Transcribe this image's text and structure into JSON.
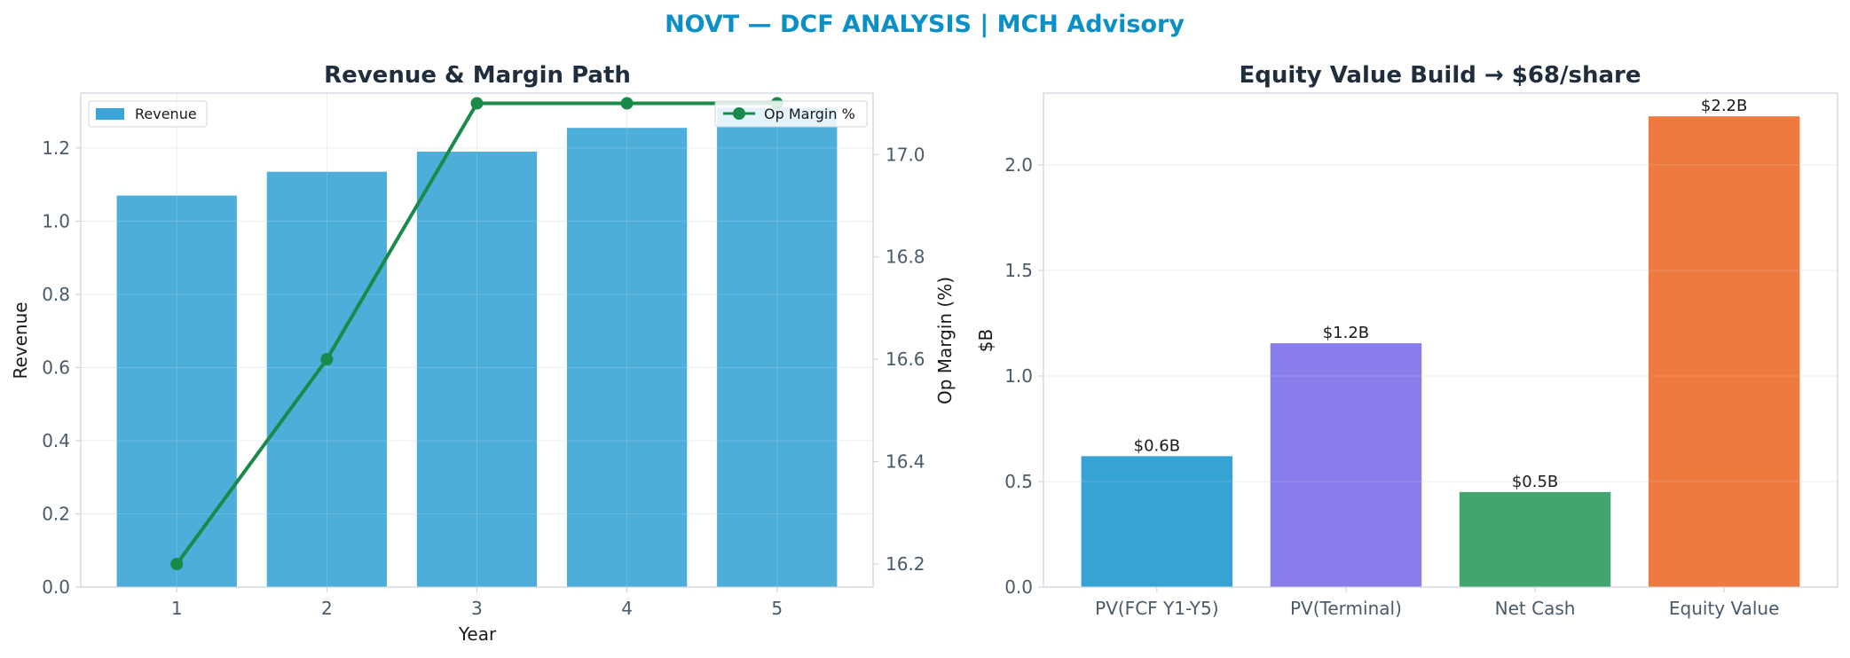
{
  "figure": {
    "title": "NOVT — DCF ANALYSIS | MCH Advisory",
    "title_color": "#0a8fc7"
  },
  "chart_data": [
    {
      "type": "bar",
      "title": "Revenue & Margin Path",
      "xlabel": "Year",
      "ylabel": "Revenue",
      "y2label": "Op Margin (%)",
      "categories": [
        "1",
        "2",
        "3",
        "4",
        "5"
      ],
      "ylim": [
        0,
        1.35
      ],
      "y_ticks": [
        "0.0",
        "0.2",
        "0.4",
        "0.6",
        "0.8",
        "1.0",
        "1.2"
      ],
      "y2lim": [
        16.155,
        17.12
      ],
      "y2_ticks": [
        "16.2",
        "16.4",
        "16.6",
        "16.8",
        "17.0"
      ],
      "grid": true,
      "series": [
        {
          "name": "Revenue",
          "kind": "bar",
          "axis": "left",
          "color": "#3aa5d6",
          "values": [
            1.07,
            1.135,
            1.19,
            1.255,
            1.31
          ]
        },
        {
          "name": "Op Margin %",
          "kind": "line",
          "axis": "right",
          "color": "#1a8a4a",
          "values": [
            16.2,
            16.6,
            17.1,
            17.1,
            17.1
          ]
        }
      ],
      "legends": [
        {
          "entries": [
            "Revenue"
          ],
          "placement": "upper-left"
        },
        {
          "entries": [
            "Op Margin %"
          ],
          "placement": "upper-right"
        }
      ]
    },
    {
      "type": "bar",
      "title": "Equity Value Build → $68/share",
      "xlabel": "",
      "ylabel": "$B",
      "categories": [
        "PV(FCF Y1-Y5)",
        "PV(Terminal)",
        "Net Cash",
        "Equity Value"
      ],
      "values": [
        0.62,
        1.155,
        0.45,
        2.23
      ],
      "value_labels": [
        "$0.6B",
        "$1.2B",
        "$0.5B",
        "$2.2B"
      ],
      "colors": [
        "#1f9ad0",
        "#7c6ee9",
        "#2f9a5e",
        "#ec6b2a"
      ],
      "ylim": [
        0,
        2.34
      ],
      "y_ticks": [
        "0.0",
        "0.5",
        "1.0",
        "1.5",
        "2.0"
      ],
      "grid": true
    }
  ]
}
